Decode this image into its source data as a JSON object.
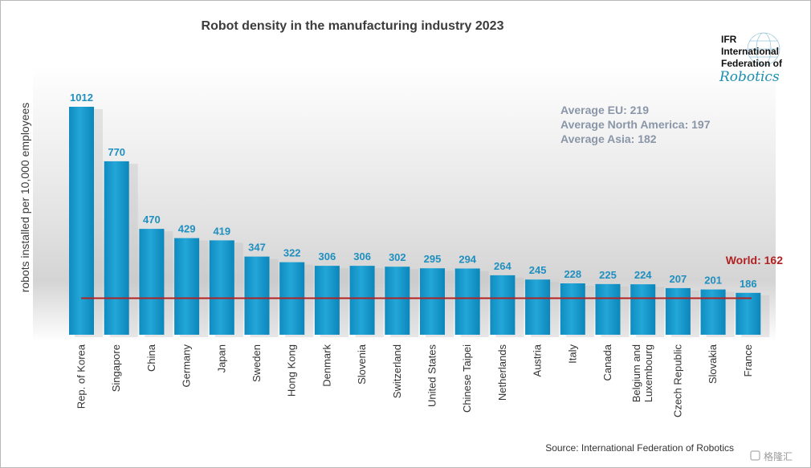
{
  "chart_data": {
    "type": "bar",
    "title": "Robot density in the manufacturing industry 2023",
    "ylabel": "robots installed per 10,000 employees",
    "xlabel": "",
    "categories": [
      "Rep. of Korea",
      "Singapore",
      "China",
      "Germany",
      "Japan",
      "Sweden",
      "Hong Kong",
      "Denmark",
      "Slovenia",
      "Switzerland",
      "United States",
      "Chinese Taipei",
      "Netherlands",
      "Austria",
      "Italy",
      "Canada",
      "Belgium and Luxembourg",
      "Czech Republic",
      "Slovakia",
      "France"
    ],
    "category_lines": [
      [
        "Rep. of Korea"
      ],
      [
        "Singapore"
      ],
      [
        "China"
      ],
      [
        "Germany"
      ],
      [
        "Japan"
      ],
      [
        "Sweden"
      ],
      [
        "Hong Kong"
      ],
      [
        "Denmark"
      ],
      [
        "Slovenia"
      ],
      [
        "Switzerland"
      ],
      [
        "United States"
      ],
      [
        "Chinese Taipei"
      ],
      [
        "Netherlands"
      ],
      [
        "Austria"
      ],
      [
        "Italy"
      ],
      [
        "Canada"
      ],
      [
        "Belgium and",
        "Luxembourg"
      ],
      [
        "Czech Republic"
      ],
      [
        "Slovakia"
      ],
      [
        "France"
      ]
    ],
    "values": [
      1012,
      770,
      470,
      429,
      419,
      347,
      322,
      306,
      306,
      302,
      295,
      294,
      264,
      245,
      228,
      225,
      224,
      207,
      201,
      186
    ],
    "ylim": [
      0,
      1012
    ],
    "grid": false,
    "reference_line": {
      "label": "World: 162",
      "value": 162
    },
    "annotations": [
      "Average EU: 219",
      "Average North America: 197",
      "Average Asia: 182"
    ],
    "source": "Source: International Federation of Robotics",
    "bar_color": "#1da0cf",
    "label_color": "#1f8fbf",
    "reference_color": "#b22222"
  },
  "logo": {
    "lines": [
      "IFR",
      "International",
      "Federation of"
    ],
    "script": "Robotics"
  },
  "watermark": {
    "text": "格隆汇"
  }
}
